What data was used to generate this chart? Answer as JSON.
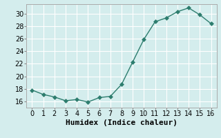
{
  "x": [
    0,
    1,
    2,
    3,
    4,
    5,
    6,
    7,
    8,
    9,
    10,
    11,
    12,
    13,
    14,
    15,
    16
  ],
  "y": [
    17.8,
    17.1,
    16.7,
    16.1,
    16.3,
    15.9,
    16.6,
    16.8,
    18.7,
    22.3,
    25.9,
    28.7,
    29.3,
    30.3,
    30.9,
    29.8,
    28.4
  ],
  "xlabel": "Humidex (Indice chaleur)",
  "ylim": [
    15.0,
    31.5
  ],
  "xlim": [
    -0.5,
    16.5
  ],
  "yticks": [
    16,
    18,
    20,
    22,
    24,
    26,
    28,
    30
  ],
  "xticks": [
    0,
    1,
    2,
    3,
    4,
    5,
    6,
    7,
    8,
    9,
    10,
    11,
    12,
    13,
    14,
    15,
    16
  ],
  "line_color": "#2d7d6e",
  "marker_color": "#2d7d6e",
  "bg_color": "#d4eded",
  "grid_color": "#ffffff",
  "xlabel_fontsize": 8,
  "tick_fontsize": 7,
  "line_width": 1.0,
  "marker_size": 3.0,
  "marker_style": "D"
}
